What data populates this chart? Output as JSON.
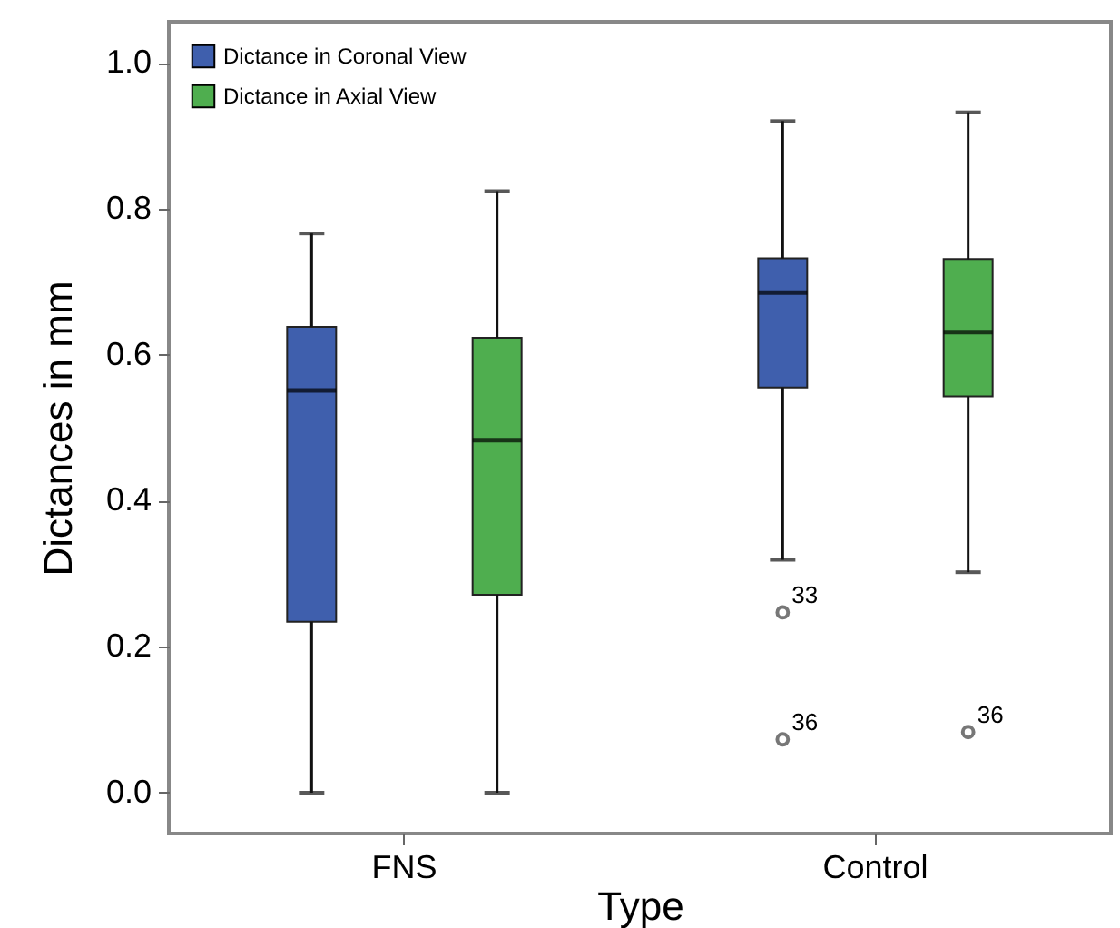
{
  "chart_data": {
    "type": "box",
    "xlabel": "Type",
    "ylabel": "Dictances in mm",
    "categories": [
      "FNS",
      "Control"
    ],
    "series": [
      {
        "name": "Dictance in Coronal View",
        "color": "#3f5fad",
        "boxes": [
          {
            "low": 0,
            "q1": 0.234,
            "median": 0.551,
            "q3": 0.638,
            "high": 0.766
          },
          {
            "low": 0.319,
            "q1": 0.555,
            "median": 0.685,
            "q3": 0.732,
            "high": 0.92,
            "outliers": [
              0.247,
              0.073
            ]
          }
        ]
      },
      {
        "name": "Dictance in Axial View",
        "color": "#4fae4f",
        "boxes": [
          {
            "low": 0,
            "q1": 0.271,
            "median": 0.483,
            "q3": 0.623,
            "high": 0.824
          },
          {
            "low": 0.302,
            "q1": 0.543,
            "median": 0.631,
            "q3": 0.731,
            "high": 0.932,
            "outliers": [
              0.083
            ]
          }
        ]
      }
    ],
    "ylim": [
      -0.056,
      1.056
    ],
    "yticks": [
      {
        "value": 0,
        "label": "0.0"
      },
      {
        "value": 0.2,
        "label": "0.2"
      },
      {
        "value": 0.4,
        "label": "0.4"
      },
      {
        "value": 0.6,
        "label": "0.6"
      },
      {
        "value": 0.8,
        "label": "0.8"
      },
      {
        "value": 1,
        "label": "1.0"
      }
    ],
    "annotations": [
      "33",
      "36",
      "36"
    ],
    "legend": "top left",
    "grid": false
  }
}
